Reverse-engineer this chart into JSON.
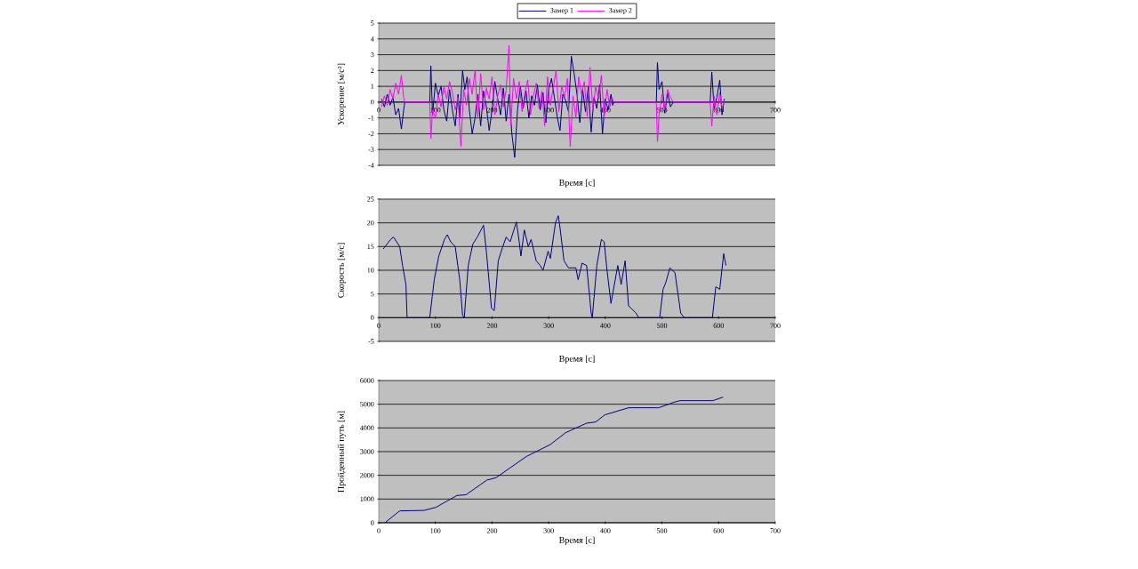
{
  "chart_data": [
    {
      "type": "line",
      "xlabel": "Время [с]",
      "ylabel": "Ускорение [м/с²]",
      "xlim": [
        0,
        700
      ],
      "xticks": [
        0,
        100,
        200,
        300,
        400,
        500,
        600,
        700
      ],
      "ylim": [
        -4,
        5
      ],
      "yticks": [
        -4,
        -3,
        -2,
        -1,
        0,
        1,
        2,
        3,
        4,
        5
      ],
      "grid": "y",
      "legend": "top",
      "marker": "none",
      "series": [
        {
          "name": "Замер 1",
          "color": "#000080",
          "x": [
            5,
            10,
            15,
            20,
            25,
            30,
            35,
            40,
            44,
            46,
            90,
            92,
            95,
            100,
            105,
            110,
            115,
            120,
            125,
            130,
            135,
            140,
            143,
            148,
            152,
            156,
            160,
            165,
            170,
            175,
            180,
            185,
            190,
            195,
            200,
            205,
            210,
            215,
            220,
            225,
            230,
            235,
            240,
            245,
            250,
            255,
            260,
            265,
            270,
            275,
            280,
            285,
            290,
            295,
            300,
            305,
            310,
            315,
            320,
            325,
            330,
            335,
            340,
            345,
            350,
            355,
            360,
            365,
            370,
            375,
            380,
            385,
            390,
            395,
            400,
            405,
            410,
            413,
            415,
            490,
            492,
            495,
            500,
            505,
            510,
            515,
            520,
            585,
            588,
            592,
            597,
            602,
            606,
            610
          ],
          "values": [
            0.2,
            -0.3,
            0.5,
            -0.2,
            0.3,
            -0.8,
            -0.4,
            -1.7,
            -0.5,
            0,
            0,
            2.3,
            -0.8,
            1.2,
            0.4,
            1.0,
            -0.5,
            -1.2,
            0.8,
            -0.5,
            -1.5,
            0.5,
            -1,
            2.0,
            0.8,
            1.6,
            -0.5,
            -2.0,
            -1.0,
            0.5,
            -1.5,
            0.7,
            -0.3,
            -1.8,
            -0.5,
            1.3,
            0.2,
            -0.8,
            0.9,
            -1.2,
            0.5,
            -2.0,
            -3.5,
            -0.5,
            1.0,
            -0.4,
            0.7,
            -1.0,
            0.4,
            -0.2,
            1.1,
            -0.5,
            0.6,
            -1.3,
            0.8,
            1.5,
            0.3,
            -0.9,
            -1.8,
            0.5,
            0.1,
            -0.6,
            2.9,
            1.8,
            0.5,
            -1.3,
            0.8,
            -0.6,
            1.0,
            -1.9,
            0.3,
            -0.4,
            1.1,
            -2.0,
            0.2,
            -0.5,
            0.5,
            -0.2,
            0,
            0,
            2.5,
            0.8,
            1.3,
            -0.7,
            0.6,
            -0.3,
            0,
            0,
            1.9,
            -0.4,
            0.3,
            1.4,
            -0.8,
            0.2
          ]
        },
        {
          "name": "Замер 2",
          "color": "#ff00ff",
          "x": [
            5,
            10,
            15,
            20,
            25,
            30,
            35,
            40,
            44,
            46,
            90,
            92,
            95,
            100,
            105,
            110,
            115,
            120,
            125,
            130,
            135,
            140,
            145,
            150,
            155,
            160,
            165,
            170,
            175,
            180,
            185,
            190,
            195,
            200,
            205,
            210,
            215,
            220,
            225,
            230,
            233,
            238,
            243,
            248,
            253,
            258,
            263,
            268,
            273,
            278,
            283,
            288,
            293,
            298,
            303,
            308,
            313,
            318,
            323,
            328,
            333,
            338,
            343,
            348,
            353,
            358,
            363,
            368,
            373,
            378,
            383,
            388,
            393,
            398,
            403,
            408,
            412,
            415,
            490,
            492,
            495,
            500,
            505,
            510,
            515,
            520,
            585,
            588,
            592,
            597,
            602,
            606,
            610
          ],
          "values": [
            -0.3,
            0.4,
            -0.2,
            0.8,
            0.2,
            1.2,
            0.5,
            1.7,
            0.3,
            0,
            0,
            -2.3,
            -0.5,
            -1.0,
            0.5,
            -0.3,
            1.0,
            0.2,
            1.3,
            0.6,
            -0.5,
            0.3,
            -2.8,
            0.8,
            -0.2,
            1.5,
            0.5,
            2.0,
            -1.0,
            1.8,
            -0.5,
            0.9,
            0.2,
            1.6,
            -0.8,
            0.4,
            1.1,
            -0.3,
            0.8,
            3.6,
            -1.5,
            1.5,
            0.2,
            1.3,
            -0.6,
            0.6,
            1.4,
            -0.8,
            0.4,
            1.2,
            -0.4,
            0.7,
            -1.5,
            1.6,
            -0.2,
            0.9,
            2.0,
            -0.6,
            1.0,
            0.3,
            1.5,
            -2.8,
            0.4,
            -1.0,
            1.6,
            0.5,
            1.3,
            -0.9,
            2.2,
            -0.5,
            1.0,
            0.2,
            1.7,
            -1.0,
            0.8,
            -0.3,
            0.3,
            0,
            0,
            -2.5,
            -0.8,
            0.5,
            -0.5,
            0.8,
            0.3,
            0,
            0,
            -1.5,
            0.4,
            -0.8,
            0.6,
            -0.4,
            0.1
          ]
        }
      ]
    },
    {
      "type": "line",
      "xlabel": "Время [с]",
      "ylabel": "Скорость [м/с]",
      "xlim": [
        0,
        700
      ],
      "xticks": [
        0,
        100,
        200,
        300,
        400,
        500,
        600,
        700
      ],
      "ylim": [
        -5,
        25
      ],
      "yticks": [
        -5,
        0,
        5,
        10,
        15,
        20,
        25
      ],
      "grid": "y",
      "marker": "none",
      "series": [
        {
          "color": "#000080",
          "x": [
            8,
            21,
            26,
            37,
            42,
            48,
            50,
            90,
            98,
            106,
            116,
            121,
            127,
            135,
            143,
            148,
            151,
            158,
            166,
            174,
            185,
            190,
            199,
            204,
            211,
            219,
            225,
            232,
            243,
            248,
            251,
            257,
            264,
            269,
            278,
            285,
            290,
            299,
            303,
            312,
            317,
            320,
            327,
            335,
            348,
            352,
            359,
            367,
            375,
            377,
            385,
            393,
            398,
            403,
            410,
            422,
            428,
            435,
            441,
            454,
            459,
            496,
            502,
            507,
            514,
            523,
            533,
            539,
            589,
            595,
            602,
            609,
            613
          ],
          "values": [
            14.5,
            16.5,
            17,
            15,
            11,
            7,
            0,
            0,
            8,
            13,
            16.5,
            17.5,
            16,
            15,
            8,
            0.5,
            0,
            11,
            15.5,
            17,
            19.5,
            14,
            2,
            1.5,
            12,
            15,
            17,
            16,
            20.2,
            16,
            13,
            18.5,
            15,
            16.5,
            12,
            11,
            10,
            14,
            12.5,
            20,
            21.5,
            19,
            12,
            10.5,
            10.5,
            8,
            11.5,
            11,
            1,
            0,
            11,
            16.5,
            16,
            10,
            3,
            11,
            7,
            12,
            2.5,
            1,
            0,
            0,
            6,
            7.5,
            10.5,
            9.5,
            1,
            0,
            0,
            6.5,
            6,
            13.5,
            11
          ]
        }
      ]
    },
    {
      "type": "line",
      "xlabel": "Время [с]",
      "ylabel": "Пройденный путь [м]",
      "xlim": [
        0,
        700
      ],
      "xticks": [
        0,
        100,
        200,
        300,
        400,
        500,
        600,
        700
      ],
      "ylim": [
        0,
        6000
      ],
      "yticks": [
        0,
        1000,
        2000,
        3000,
        4000,
        5000,
        6000
      ],
      "grid": "y",
      "marker": "none",
      "series": [
        {
          "color": "#000080",
          "x": [
            11,
            37,
            80,
            101,
            138,
            154,
            191,
            207,
            261,
            303,
            330,
            367,
            383,
            399,
            441,
            494,
            521,
            532,
            569,
            590,
            608
          ],
          "values": [
            0,
            500,
            520,
            650,
            1150,
            1180,
            1800,
            1900,
            2800,
            3300,
            3800,
            4200,
            4250,
            4550,
            4850,
            4850,
            5080,
            5150,
            5150,
            5150,
            5300
          ]
        }
      ]
    }
  ]
}
